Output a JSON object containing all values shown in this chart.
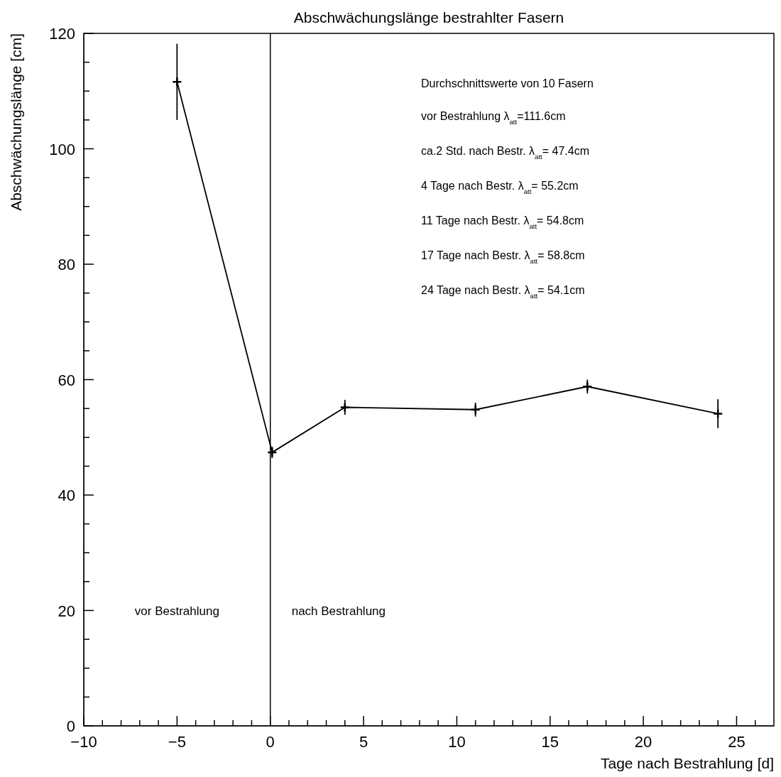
{
  "chart_data": {
    "type": "line",
    "title": "Abschwächungslänge bestrahlter Fasern",
    "xlabel": "Tage nach Bestrahlung [d]",
    "ylabel": "Abschwächungslänge [cm]",
    "x": [
      -5,
      0.1,
      4,
      11,
      17,
      24
    ],
    "series": [
      {
        "color": "#000000",
        "values": [
          111.6,
          47.4,
          55.2,
          54.8,
          58.8,
          54.1
        ],
        "errors": [
          6.6,
          1.0,
          1.3,
          1.2,
          1.2,
          2.5
        ]
      }
    ],
    "marker": "cross",
    "line_style": "solid",
    "xlim": [
      -10,
      27
    ],
    "xticks": [
      -10,
      {
        "value": -9,
        "label": null
      },
      {
        "value": -8,
        "label": null
      },
      {
        "value": -7,
        "label": null
      },
      {
        "value": -6,
        "label": null
      },
      -5,
      {
        "value": -4,
        "label": null
      },
      {
        "value": -3,
        "label": null
      },
      {
        "value": -2,
        "label": null
      },
      {
        "value": -1,
        "label": null
      },
      0,
      {
        "value": 1,
        "label": null
      },
      {
        "value": 2,
        "label": null
      },
      {
        "value": 3,
        "label": null
      },
      {
        "value": 4,
        "label": null
      },
      5,
      {
        "value": 6,
        "label": null
      },
      {
        "value": 7,
        "label": null
      },
      {
        "value": 8,
        "label": null
      },
      {
        "value": 9,
        "label": null
      },
      10,
      {
        "value": 11,
        "label": null
      },
      {
        "value": 12,
        "label": null
      },
      {
        "value": 13,
        "label": null
      },
      {
        "value": 14,
        "label": null
      },
      15,
      {
        "value": 16,
        "label": null
      },
      {
        "value": 17,
        "label": null
      },
      {
        "value": 18,
        "label": null
      },
      {
        "value": 19,
        "label": null
      },
      20,
      {
        "value": 21,
        "label": null
      },
      {
        "value": 22,
        "label": null
      },
      {
        "value": 23,
        "label": null
      },
      {
        "value": 24,
        "label": null
      },
      25,
      {
        "value": 26,
        "label": null
      }
    ],
    "ylim": [
      0,
      120
    ],
    "yticks": [
      0,
      {
        "value": 5,
        "label": null
      },
      {
        "value": 10,
        "label": null
      },
      {
        "value": 15,
        "label": null
      },
      20,
      {
        "value": 25,
        "label": null
      },
      {
        "value": 30,
        "label": null
      },
      {
        "value": 35,
        "label": null
      },
      40,
      {
        "value": 45,
        "label": null
      },
      {
        "value": 50,
        "label": null
      },
      {
        "value": 55,
        "label": null
      },
      60,
      {
        "value": 65,
        "label": null
      },
      {
        "value": 70,
        "label": null
      },
      {
        "value": 75,
        "label": null
      },
      80,
      {
        "value": 85,
        "label": null
      },
      {
        "value": 90,
        "label": null
      },
      {
        "value": 95,
        "label": null
      },
      100,
      {
        "value": 105,
        "label": null
      },
      {
        "value": 110,
        "label": null
      },
      {
        "value": 115,
        "label": null
      },
      120
    ],
    "ref_lines": [
      {
        "axis": "x",
        "value": 0,
        "color": "#000000"
      }
    ],
    "annotations": [
      "vor Bestrahlung",
      "nach Bestrahlung",
      "Durchschnittswerte von 10 Fasern",
      "vor Bestrahlung λ$_{att}$=111.6cm",
      "ca.2 Std. nach Bestr. λ$_{att}$= 47.4cm",
      "4 Tage nach Bestr. λ$_{att}$= 55.2cm",
      "11 Tage nach Bestr. λ$_{att}$= 54.8cm",
      "17 Tage nach Bestr. λ$_{att}$= 58.8cm",
      "24 Tage nach Bestr. λ$_{att}$= 54.1cm"
    ]
  }
}
